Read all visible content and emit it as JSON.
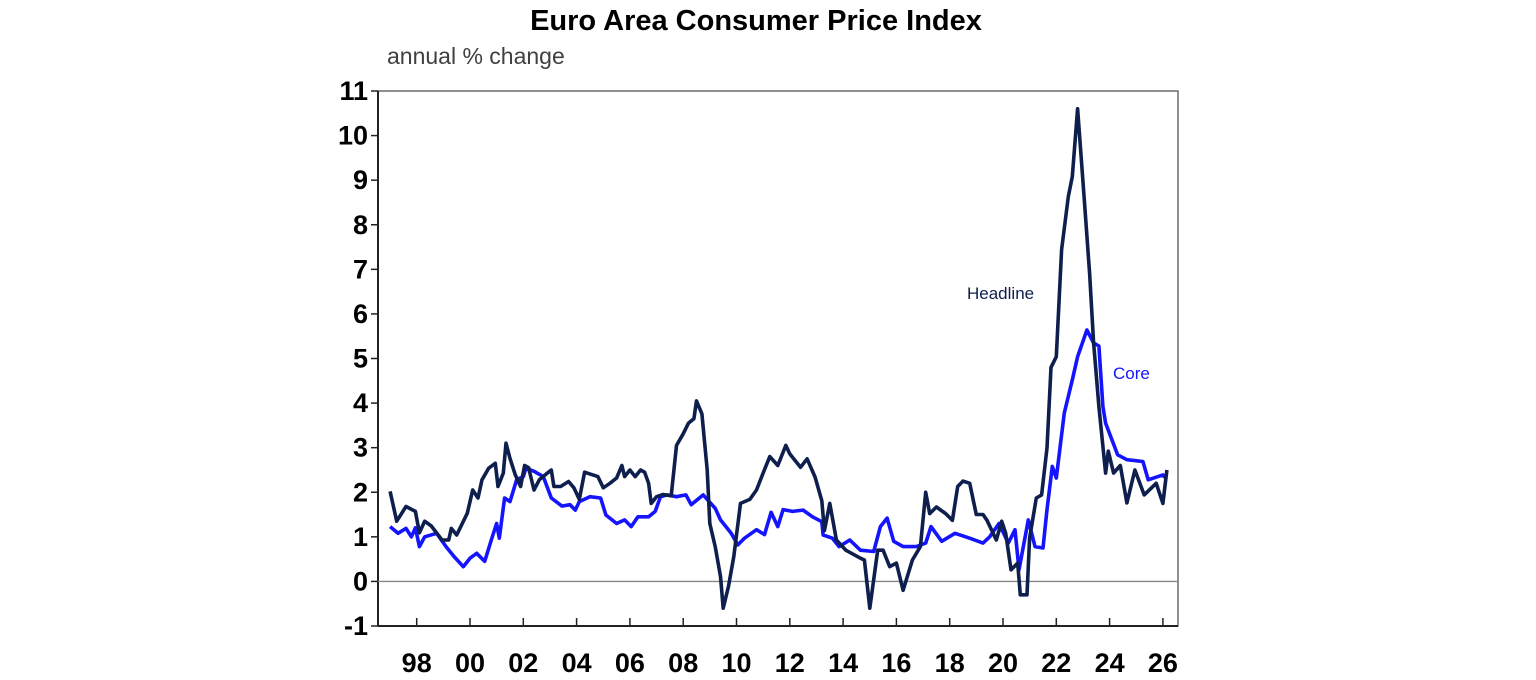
{
  "chart_data": {
    "type": "line",
    "title": "Euro Area Consumer Price Index",
    "subtitle": "annual % change",
    "xlabel": "",
    "ylabel": "",
    "ylim": [
      -1,
      11
    ],
    "xlim": [
      1996.55,
      2026.65
    ],
    "yticks": [
      "-1",
      "0",
      "1",
      "2",
      "3",
      "4",
      "5",
      "6",
      "7",
      "8",
      "9",
      "10",
      "11"
    ],
    "xticks": [
      {
        "year": 1998,
        "label": "98"
      },
      {
        "year": 2000,
        "label": "00"
      },
      {
        "year": 2002,
        "label": "02"
      },
      {
        "year": 2004,
        "label": "04"
      },
      {
        "year": 2006,
        "label": "06"
      },
      {
        "year": 2008,
        "label": "08"
      },
      {
        "year": 2010,
        "label": "10"
      },
      {
        "year": 2012,
        "label": "12"
      },
      {
        "year": 2014,
        "label": "14"
      },
      {
        "year": 2016,
        "label": "16"
      },
      {
        "year": 2018,
        "label": "18"
      },
      {
        "year": 2020,
        "label": "20"
      },
      {
        "year": 2022,
        "label": "22"
      },
      {
        "year": 2024,
        "label": "24"
      },
      {
        "year": 2026,
        "label": "26"
      }
    ],
    "grid": false,
    "reference_line": 0,
    "series": [
      {
        "name": "Headline",
        "color": "#0e1f4d",
        "points": [
          [
            1997.0,
            2.02
          ],
          [
            1997.25,
            1.35
          ],
          [
            1997.6,
            1.68
          ],
          [
            1997.95,
            1.57
          ],
          [
            1998.1,
            1.09
          ],
          [
            1998.3,
            1.35
          ],
          [
            1998.55,
            1.24
          ],
          [
            1998.95,
            0.93
          ],
          [
            1999.2,
            0.93
          ],
          [
            1999.3,
            1.19
          ],
          [
            1999.5,
            1.04
          ],
          [
            1999.9,
            1.53
          ],
          [
            2000.1,
            2.05
          ],
          [
            2000.3,
            1.87
          ],
          [
            2000.45,
            2.28
          ],
          [
            2000.7,
            2.54
          ],
          [
            2000.95,
            2.65
          ],
          [
            2001.05,
            2.13
          ],
          [
            2001.25,
            2.43
          ],
          [
            2001.35,
            3.1
          ],
          [
            2001.5,
            2.76
          ],
          [
            2001.7,
            2.39
          ],
          [
            2001.9,
            2.13
          ],
          [
            2002.05,
            2.6
          ],
          [
            2002.2,
            2.55
          ],
          [
            2002.4,
            2.05
          ],
          [
            2002.6,
            2.28
          ],
          [
            2002.9,
            2.43
          ],
          [
            2003.05,
            2.5
          ],
          [
            2003.15,
            2.13
          ],
          [
            2003.4,
            2.13
          ],
          [
            2003.7,
            2.24
          ],
          [
            2003.9,
            2.1
          ],
          [
            2004.1,
            1.84
          ],
          [
            2004.3,
            2.45
          ],
          [
            2004.55,
            2.4
          ],
          [
            2004.8,
            2.35
          ],
          [
            2005.0,
            2.1
          ],
          [
            2005.25,
            2.2
          ],
          [
            2005.5,
            2.32
          ],
          [
            2005.7,
            2.6
          ],
          [
            2005.8,
            2.35
          ],
          [
            2006.0,
            2.5
          ],
          [
            2006.2,
            2.35
          ],
          [
            2006.4,
            2.5
          ],
          [
            2006.55,
            2.45
          ],
          [
            2006.7,
            2.2
          ],
          [
            2006.8,
            1.75
          ],
          [
            2007.0,
            1.9
          ],
          [
            2007.25,
            1.95
          ],
          [
            2007.55,
            1.92
          ],
          [
            2007.75,
            3.05
          ],
          [
            2008.0,
            3.31
          ],
          [
            2008.2,
            3.55
          ],
          [
            2008.4,
            3.65
          ],
          [
            2008.5,
            4.05
          ],
          [
            2008.7,
            3.76
          ],
          [
            2008.9,
            2.5
          ],
          [
            2009.0,
            1.3
          ],
          [
            2009.2,
            0.78
          ],
          [
            2009.4,
            0.11
          ],
          [
            2009.5,
            -0.6
          ],
          [
            2009.7,
            -0.11
          ],
          [
            2009.9,
            0.56
          ],
          [
            2010.15,
            1.75
          ],
          [
            2010.5,
            1.84
          ],
          [
            2010.75,
            2.05
          ],
          [
            2011.0,
            2.43
          ],
          [
            2011.25,
            2.8
          ],
          [
            2011.55,
            2.6
          ],
          [
            2011.85,
            3.05
          ],
          [
            2012.0,
            2.86
          ],
          [
            2012.4,
            2.56
          ],
          [
            2012.65,
            2.75
          ],
          [
            2012.95,
            2.34
          ],
          [
            2013.2,
            1.81
          ],
          [
            2013.3,
            1.14
          ],
          [
            2013.5,
            1.75
          ],
          [
            2013.75,
            0.93
          ],
          [
            2014.1,
            0.7
          ],
          [
            2014.65,
            0.52
          ],
          [
            2014.8,
            0.48
          ],
          [
            2015.0,
            -0.6
          ],
          [
            2015.3,
            0.7
          ],
          [
            2015.5,
            0.7
          ],
          [
            2015.75,
            0.33
          ],
          [
            2016.0,
            0.41
          ],
          [
            2016.25,
            -0.2
          ],
          [
            2016.6,
            0.48
          ],
          [
            2016.9,
            0.78
          ],
          [
            2017.1,
            2.0
          ],
          [
            2017.25,
            1.52
          ],
          [
            2017.5,
            1.67
          ],
          [
            2017.85,
            1.52
          ],
          [
            2018.1,
            1.37
          ],
          [
            2018.3,
            2.13
          ],
          [
            2018.5,
            2.25
          ],
          [
            2018.75,
            2.2
          ],
          [
            2019.0,
            1.5
          ],
          [
            2019.25,
            1.5
          ],
          [
            2019.4,
            1.37
          ],
          [
            2019.75,
            0.93
          ],
          [
            2019.95,
            1.35
          ],
          [
            2020.1,
            1.08
          ],
          [
            2020.3,
            0.26
          ],
          [
            2020.55,
            0.41
          ],
          [
            2020.65,
            -0.3
          ],
          [
            2020.9,
            -0.3
          ],
          [
            2021.0,
            0.97
          ],
          [
            2021.25,
            1.87
          ],
          [
            2021.45,
            1.94
          ],
          [
            2021.65,
            2.99
          ],
          [
            2021.8,
            4.8
          ],
          [
            2022.0,
            5.04
          ],
          [
            2022.2,
            7.44
          ],
          [
            2022.45,
            8.63
          ],
          [
            2022.6,
            9.08
          ],
          [
            2022.8,
            10.6
          ],
          [
            2023.05,
            8.56
          ],
          [
            2023.25,
            6.91
          ],
          [
            2023.4,
            5.35
          ],
          [
            2023.6,
            3.92
          ],
          [
            2023.85,
            2.43
          ],
          [
            2023.95,
            2.92
          ],
          [
            2024.15,
            2.43
          ],
          [
            2024.4,
            2.6
          ],
          [
            2024.65,
            1.76
          ],
          [
            2024.95,
            2.5
          ],
          [
            2025.3,
            1.94
          ],
          [
            2025.75,
            2.2
          ],
          [
            2026.0,
            1.75
          ],
          [
            2026.15,
            2.5
          ]
        ]
      },
      {
        "name": "Core",
        "color": "#1414ff",
        "points": [
          [
            1997.0,
            1.23
          ],
          [
            1997.3,
            1.08
          ],
          [
            1997.6,
            1.19
          ],
          [
            1997.8,
            1.0
          ],
          [
            1997.95,
            1.2
          ],
          [
            1998.1,
            0.78
          ],
          [
            1998.3,
            1.0
          ],
          [
            1998.75,
            1.08
          ],
          [
            1999.1,
            0.78
          ],
          [
            1999.4,
            0.56
          ],
          [
            1999.75,
            0.33
          ],
          [
            2000.0,
            0.52
          ],
          [
            2000.25,
            0.63
          ],
          [
            2000.55,
            0.45
          ],
          [
            2000.8,
            0.93
          ],
          [
            2001.0,
            1.3
          ],
          [
            2001.1,
            0.97
          ],
          [
            2001.3,
            1.87
          ],
          [
            2001.5,
            1.79
          ],
          [
            2001.75,
            2.28
          ],
          [
            2002.0,
            2.35
          ],
          [
            2002.1,
            2.54
          ],
          [
            2002.4,
            2.47
          ],
          [
            2002.75,
            2.35
          ],
          [
            2003.05,
            1.87
          ],
          [
            2003.45,
            1.69
          ],
          [
            2003.75,
            1.72
          ],
          [
            2003.95,
            1.6
          ],
          [
            2004.1,
            1.79
          ],
          [
            2004.5,
            1.9
          ],
          [
            2004.9,
            1.87
          ],
          [
            2005.1,
            1.49
          ],
          [
            2005.5,
            1.3
          ],
          [
            2005.8,
            1.38
          ],
          [
            2006.05,
            1.23
          ],
          [
            2006.3,
            1.45
          ],
          [
            2006.7,
            1.45
          ],
          [
            2006.95,
            1.57
          ],
          [
            2007.15,
            1.9
          ],
          [
            2007.4,
            1.94
          ],
          [
            2007.75,
            1.9
          ],
          [
            2008.1,
            1.94
          ],
          [
            2008.3,
            1.72
          ],
          [
            2008.75,
            1.94
          ],
          [
            2009.2,
            1.64
          ],
          [
            2009.4,
            1.38
          ],
          [
            2009.8,
            1.08
          ],
          [
            2010.05,
            0.82
          ],
          [
            2010.3,
            0.97
          ],
          [
            2010.75,
            1.16
          ],
          [
            2011.05,
            1.05
          ],
          [
            2011.3,
            1.55
          ],
          [
            2011.55,
            1.23
          ],
          [
            2011.75,
            1.61
          ],
          [
            2012.1,
            1.57
          ],
          [
            2012.5,
            1.6
          ],
          [
            2012.85,
            1.45
          ],
          [
            2013.2,
            1.34
          ],
          [
            2013.25,
            1.04
          ],
          [
            2013.6,
            0.97
          ],
          [
            2013.85,
            0.78
          ],
          [
            2014.25,
            0.93
          ],
          [
            2014.65,
            0.7
          ],
          [
            2015.15,
            0.67
          ],
          [
            2015.4,
            1.23
          ],
          [
            2015.65,
            1.42
          ],
          [
            2015.9,
            0.9
          ],
          [
            2016.25,
            0.78
          ],
          [
            2016.75,
            0.78
          ],
          [
            2017.1,
            0.86
          ],
          [
            2017.3,
            1.23
          ],
          [
            2017.7,
            0.9
          ],
          [
            2018.2,
            1.08
          ],
          [
            2018.75,
            0.97
          ],
          [
            2019.25,
            0.86
          ],
          [
            2019.5,
            1.0
          ],
          [
            2019.85,
            1.3
          ],
          [
            2020.2,
            0.86
          ],
          [
            2020.45,
            1.16
          ],
          [
            2020.6,
            0.26
          ],
          [
            2020.95,
            1.38
          ],
          [
            2021.2,
            0.78
          ],
          [
            2021.5,
            0.75
          ],
          [
            2021.65,
            1.61
          ],
          [
            2021.85,
            2.58
          ],
          [
            2022.0,
            2.32
          ],
          [
            2022.3,
            3.78
          ],
          [
            2022.6,
            4.52
          ],
          [
            2022.8,
            5.04
          ],
          [
            2023.15,
            5.64
          ],
          [
            2023.4,
            5.35
          ],
          [
            2023.6,
            5.28
          ],
          [
            2023.75,
            3.92
          ],
          [
            2023.85,
            3.55
          ],
          [
            2024.3,
            2.84
          ],
          [
            2024.65,
            2.73
          ],
          [
            2025.25,
            2.69
          ],
          [
            2025.45,
            2.28
          ],
          [
            2026.0,
            2.39
          ],
          [
            2026.1,
            2.32
          ]
        ]
      }
    ]
  }
}
